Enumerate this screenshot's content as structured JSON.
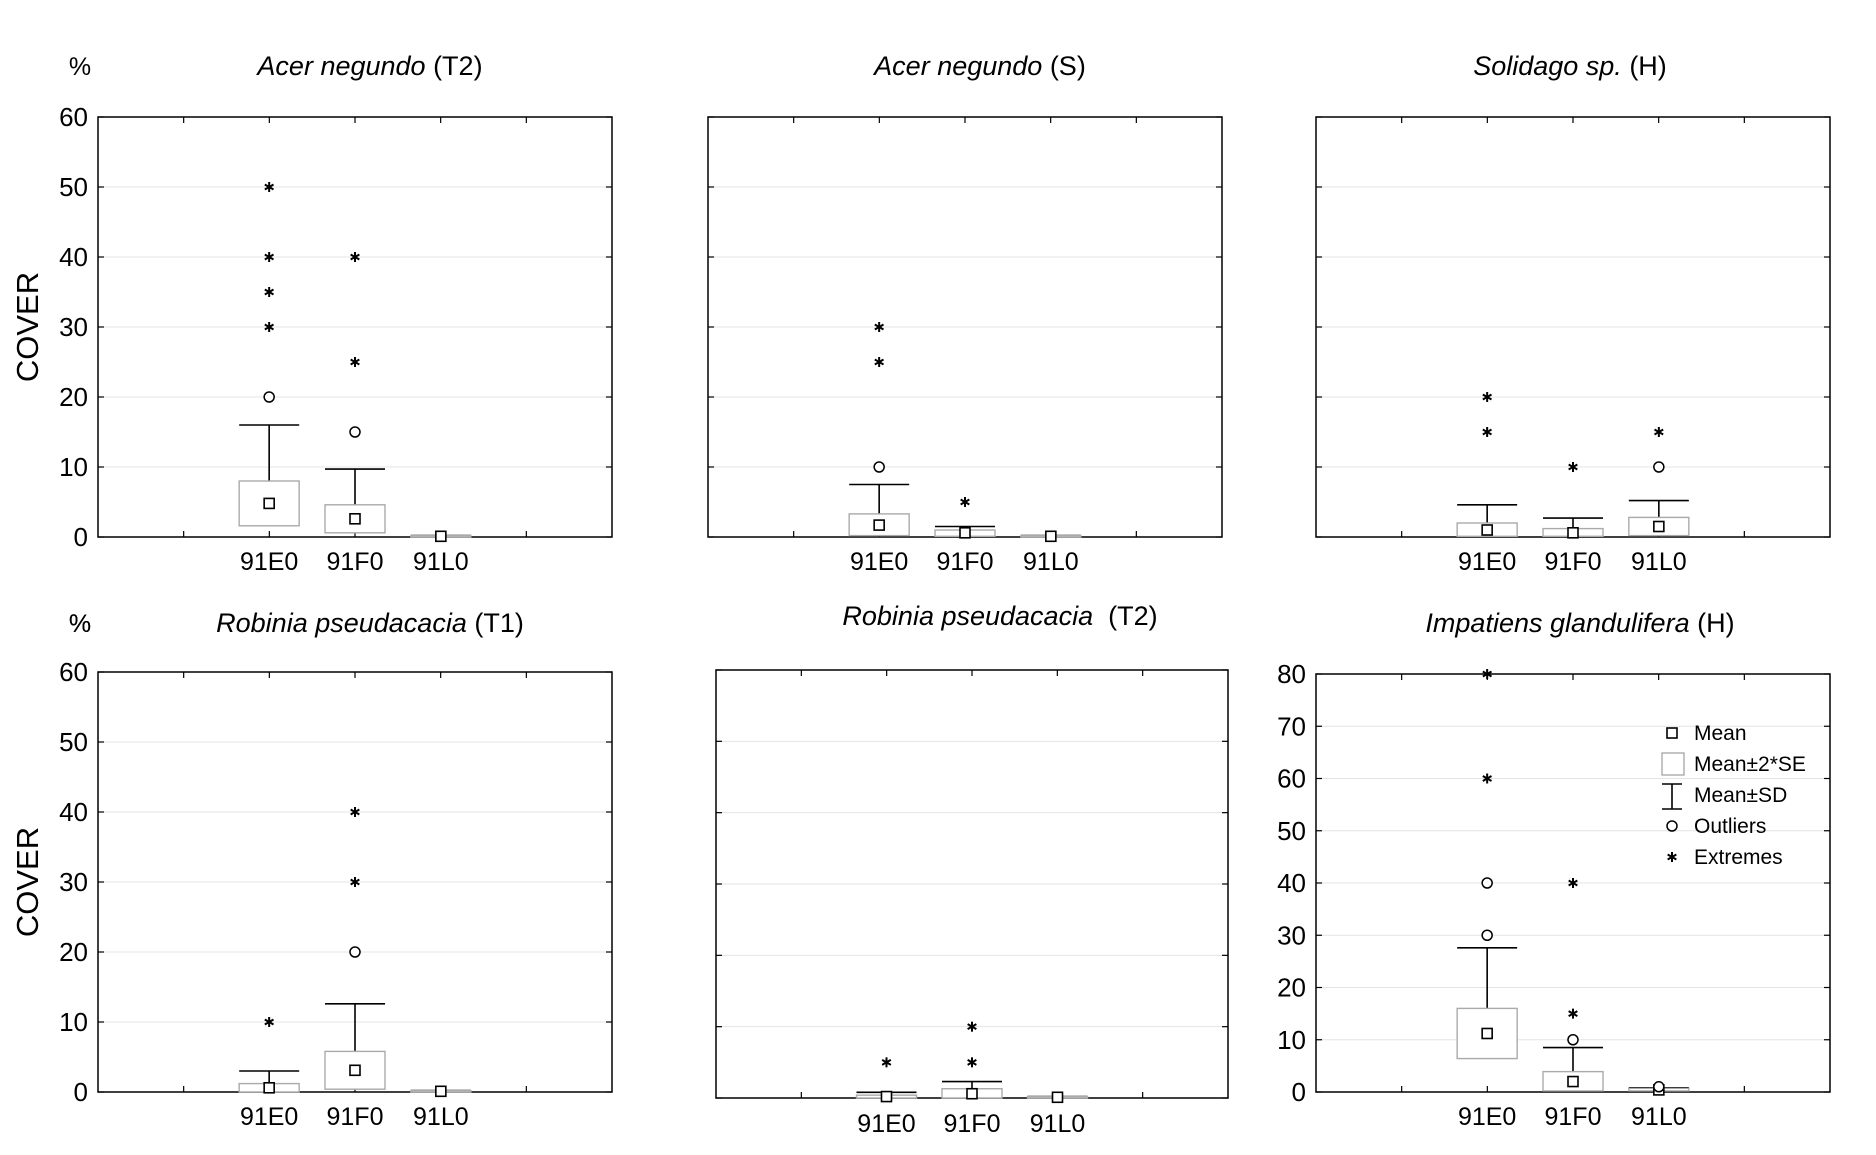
{
  "chart_data": [
    {
      "type": "box",
      "title_species": "Acer negundo",
      "title_layer": " (T2)",
      "unit": "%",
      "ylabel": "COVER",
      "ylim": [
        0,
        60
      ],
      "yticks": [
        0,
        10,
        20,
        30,
        40,
        50,
        60
      ],
      "show_tick_labels": true,
      "grid": true,
      "categories": [
        "91E0",
        "91F0",
        "91L0"
      ],
      "series": [
        {
          "category": "91E0",
          "mean": 4.8,
          "se2_low": 1.6,
          "se2_high": 8.0,
          "sd_low": 0,
          "sd_high": 16.0,
          "outliers": [
            20
          ],
          "extremes": [
            30,
            35,
            40,
            50
          ]
        },
        {
          "category": "91F0",
          "mean": 2.6,
          "se2_low": 0.6,
          "se2_high": 4.6,
          "sd_low": 0,
          "sd_high": 9.7,
          "outliers": [
            15
          ],
          "extremes": [
            25,
            40
          ]
        },
        {
          "category": "91L0",
          "mean": 0.1,
          "se2_low": 0,
          "se2_high": 0.2,
          "sd_low": 0,
          "sd_high": 0.2,
          "outliers": [],
          "extremes": []
        }
      ]
    },
    {
      "type": "box",
      "title_species": "Acer negundo",
      "title_layer": " (S)",
      "unit": "",
      "ylabel": "",
      "ylim": [
        0,
        60
      ],
      "yticks": [
        0,
        10,
        20,
        30,
        40,
        50,
        60
      ],
      "show_tick_labels": false,
      "grid": true,
      "categories": [
        "91E0",
        "91F0",
        "91L0"
      ],
      "series": [
        {
          "category": "91E0",
          "mean": 1.7,
          "se2_low": 0.2,
          "se2_high": 3.3,
          "sd_low": 0,
          "sd_high": 7.5,
          "outliers": [
            10
          ],
          "extremes": [
            25,
            30
          ]
        },
        {
          "category": "91F0",
          "mean": 0.6,
          "se2_low": 0.1,
          "se2_high": 1.0,
          "sd_low": 0,
          "sd_high": 1.5,
          "outliers": [],
          "extremes": [
            5
          ]
        },
        {
          "category": "91L0",
          "mean": 0.1,
          "se2_low": 0,
          "se2_high": 0.2,
          "sd_low": 0,
          "sd_high": 0.2,
          "outliers": [],
          "extremes": []
        }
      ]
    },
    {
      "type": "box",
      "title_species": "Solidago sp.",
      "title_layer": " (H)",
      "unit": "",
      "ylabel": "",
      "ylim": [
        0,
        60
      ],
      "yticks": [
        0,
        10,
        20,
        30,
        40,
        50,
        60
      ],
      "show_tick_labels": false,
      "grid": true,
      "categories": [
        "91E0",
        "91F0",
        "91L0"
      ],
      "series": [
        {
          "category": "91E0",
          "mean": 1.0,
          "se2_low": 0.1,
          "se2_high": 2.0,
          "sd_low": 0,
          "sd_high": 4.6,
          "outliers": [],
          "extremes": [
            15,
            20
          ]
        },
        {
          "category": "91F0",
          "mean": 0.6,
          "se2_low": 0.1,
          "se2_high": 1.2,
          "sd_low": 0,
          "sd_high": 2.7,
          "outliers": [],
          "extremes": [
            10
          ]
        },
        {
          "category": "91L0",
          "mean": 1.5,
          "se2_low": 0.2,
          "se2_high": 2.8,
          "sd_low": 0,
          "sd_high": 5.2,
          "outliers": [
            10
          ],
          "extremes": [
            15
          ]
        }
      ]
    },
    {
      "type": "box",
      "title_species": "Robinia pseudacacia",
      "title_layer": " (T1)",
      "unit": "%",
      "ylabel": "COVER",
      "ylim": [
        0,
        60
      ],
      "yticks": [
        0,
        10,
        20,
        30,
        40,
        50,
        60
      ],
      "show_tick_labels": true,
      "grid": true,
      "categories": [
        "91E0",
        "91F0",
        "91L0"
      ],
      "series": [
        {
          "category": "91E0",
          "mean": 0.6,
          "se2_low": 0,
          "se2_high": 1.2,
          "sd_low": 0,
          "sd_high": 3.0,
          "outliers": [],
          "extremes": [
            10
          ]
        },
        {
          "category": "91F0",
          "mean": 3.1,
          "se2_low": 0.4,
          "se2_high": 5.8,
          "sd_low": 0,
          "sd_high": 12.6,
          "outliers": [
            20
          ],
          "extremes": [
            30,
            40
          ]
        },
        {
          "category": "91L0",
          "mean": 0.1,
          "se2_low": 0,
          "se2_high": 0.2,
          "sd_low": 0,
          "sd_high": 0.2,
          "outliers": [],
          "extremes": []
        }
      ]
    },
    {
      "type": "box",
      "title_species": "Robinia pseudacacia",
      "title_layer": "  (T2)",
      "unit": "",
      "ylabel": "",
      "ylim": [
        0,
        60
      ],
      "yticks": [
        0,
        10,
        20,
        30,
        40,
        50,
        60
      ],
      "show_tick_labels": false,
      "grid": true,
      "categories": [
        "91E0",
        "91F0",
        "91L0"
      ],
      "series": [
        {
          "category": "91E0",
          "mean": 0.2,
          "se2_low": 0,
          "se2_high": 0.4,
          "sd_low": 0,
          "sd_high": 0.8,
          "outliers": [],
          "extremes": [
            5
          ]
        },
        {
          "category": "91F0",
          "mean": 0.6,
          "se2_low": 0,
          "se2_high": 1.3,
          "sd_low": 0,
          "sd_high": 2.3,
          "outliers": [],
          "extremes": [
            5,
            10
          ]
        },
        {
          "category": "91L0",
          "mean": 0.1,
          "se2_low": 0,
          "se2_high": 0.2,
          "sd_low": 0,
          "sd_high": 0.2,
          "outliers": [],
          "extremes": []
        }
      ]
    },
    {
      "type": "box",
      "title_species": "Impatiens glandulifera",
      "title_layer": " (H)",
      "unit": "%",
      "ylabel": "",
      "ylim": [
        0,
        80
      ],
      "yticks": [
        0,
        10,
        20,
        30,
        40,
        50,
        60,
        70,
        80
      ],
      "show_tick_labels": true,
      "grid": true,
      "categories": [
        "91E0",
        "91F0",
        "91L0"
      ],
      "series": [
        {
          "category": "91E0",
          "mean": 11.2,
          "se2_low": 6.4,
          "se2_high": 16.0,
          "sd_low": 0,
          "sd_high": 27.6,
          "outliers": [
            30,
            40
          ],
          "extremes": [
            60,
            80
          ]
        },
        {
          "category": "91F0",
          "mean": 2.0,
          "se2_low": 0.2,
          "se2_high": 3.9,
          "sd_low": 0,
          "sd_high": 8.5,
          "outliers": [
            10
          ],
          "extremes": [
            15,
            40
          ]
        },
        {
          "category": "91L0",
          "mean": 0.4,
          "se2_low": 0.2,
          "se2_high": 0.7,
          "sd_low": 0,
          "sd_high": 0.8,
          "outliers": [
            1
          ],
          "extremes": []
        }
      ],
      "legend": {
        "placement": "top-right",
        "items": [
          "Mean",
          "Mean±2*SE",
          "Mean±SD",
          "Outliers",
          "Extremes"
        ]
      }
    }
  ]
}
